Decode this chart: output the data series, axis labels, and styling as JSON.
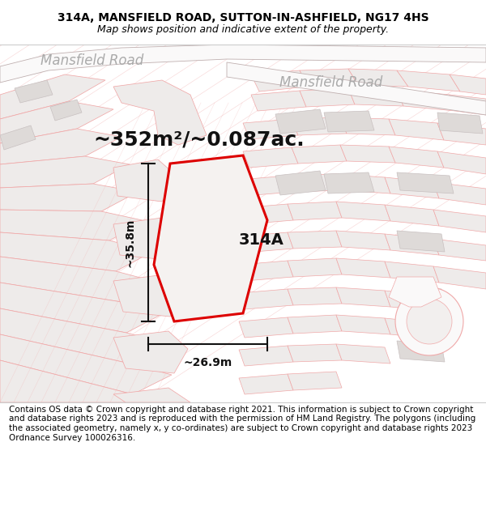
{
  "title_line1": "314A, MANSFIELD ROAD, SUTTON-IN-ASHFIELD, NG17 4HS",
  "title_line2": "Map shows position and indicative extent of the property.",
  "footer_text": "Contains OS data © Crown copyright and database right 2021. This information is subject to Crown copyright and database rights 2023 and is reproduced with the permission of HM Land Registry. The polygons (including the associated geometry, namely x, y co-ordinates) are subject to Crown copyright and database rights 2023 Ordnance Survey 100026316.",
  "area_label": "~352m²/~0.087ac.",
  "label_314A": "314A",
  "dim_height": "~35.8m",
  "dim_width": "~26.9m",
  "road_label1": "Mansfield Road",
  "road_label2": "Mansfield Road",
  "map_bg": "#f2efee",
  "road_fill": "#faf9f9",
  "road_edge": "#c0b0b0",
  "parcel_fill": "#eeebea",
  "parcel_edge": "#f0a8a8",
  "block_fill": "#dedad8",
  "block_edge": "#c8c0c0",
  "plot_edge": "#dd0000",
  "plot_fill": "#f5f2f0",
  "dim_color": "#111111",
  "label_color": "#111111",
  "road_label_color": "#aaaaaa",
  "title_fontsize": 10,
  "subtitle_fontsize": 9,
  "area_fontsize": 18,
  "plot_label_fontsize": 14,
  "dim_fontsize": 10,
  "road_label_fontsize": 12,
  "footer_fontsize": 7.5
}
